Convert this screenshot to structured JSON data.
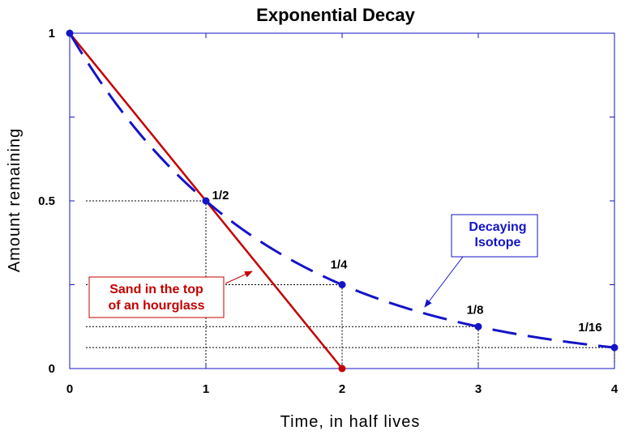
{
  "chart_data": {
    "type": "line",
    "title": "Exponential Decay",
    "xlabel": "Time, in half lives",
    "ylabel": "Amount remaining",
    "xlim": [
      0,
      4
    ],
    "ylim": [
      0,
      1
    ],
    "xticks": [
      "0",
      "1",
      "2",
      "3",
      "4"
    ],
    "yticks": [
      {
        "value": 0,
        "label": "0"
      },
      {
        "value": 0.5,
        "label": "0.5"
      },
      {
        "value": 1,
        "label": "1"
      }
    ],
    "grid": false,
    "series": [
      {
        "name": "Decaying Isotope",
        "style": "dashed",
        "color": "#1414c8",
        "x": [
          0,
          1,
          2,
          3,
          4
        ],
        "y": [
          1,
          0.5,
          0.25,
          0.125,
          0.0625
        ],
        "point_labels": [
          "",
          "1/2",
          "1/4",
          "1/8",
          "1/16"
        ]
      },
      {
        "name": "Sand in the top of an hourglass",
        "style": "solid",
        "color": "#c40000",
        "x": [
          0,
          2
        ],
        "y": [
          1,
          0
        ]
      }
    ],
    "annotations": {
      "red_line1": "Sand in the top",
      "red_line2": "of an hourglass",
      "blue_line1": "Decaying",
      "blue_line2": "Isotope"
    }
  }
}
